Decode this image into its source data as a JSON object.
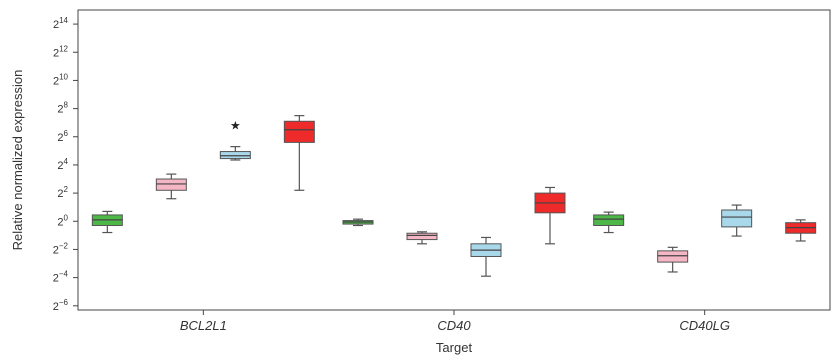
{
  "chart_data": {
    "type": "boxplot",
    "title": "",
    "xlabel": "Target",
    "ylabel": "Relative normalized expression",
    "y_scale": "log2",
    "ylim_exponent": [
      -6.3,
      15
    ],
    "y_ticks": [
      {
        "base": "2",
        "exp": "14"
      },
      {
        "base": "2",
        "exp": "12"
      },
      {
        "base": "2",
        "exp": "10"
      },
      {
        "base": "2",
        "exp": "8"
      },
      {
        "base": "2",
        "exp": "6"
      },
      {
        "base": "2",
        "exp": "4"
      },
      {
        "base": "2",
        "exp": "2"
      },
      {
        "base": "2",
        "exp": "0"
      },
      {
        "base": "2",
        "exp": "−2"
      },
      {
        "base": "2",
        "exp": "−4"
      },
      {
        "base": "2",
        "exp": "−6"
      }
    ],
    "categories": [
      "BCL2L1",
      "CD40",
      "CD40LG"
    ],
    "grid": false,
    "legend": "none",
    "groups": [
      {
        "category": "BCL2L1",
        "boxes": [
          {
            "color": "#4db848",
            "min": -0.8,
            "q1": -0.3,
            "median": 0.1,
            "q3": 0.45,
            "max": 0.7
          },
          {
            "color": "#f4b6c4",
            "min": 1.6,
            "q1": 2.2,
            "median": 2.65,
            "q3": 3.0,
            "max": 3.35
          },
          {
            "color": "#a8d8ea",
            "min": 4.35,
            "q1": 4.45,
            "median": 4.65,
            "q3": 4.95,
            "max": 5.3
          },
          {
            "color": "#ee2a2a",
            "min": 2.2,
            "q1": 5.6,
            "median": 6.5,
            "q3": 7.1,
            "max": 7.5
          }
        ],
        "outliers": [
          {
            "box": 2,
            "value": 6.8
          }
        ]
      },
      {
        "category": "CD40",
        "boxes": [
          {
            "color": "#4db848",
            "min": -0.3,
            "q1": -0.2,
            "median": -0.05,
            "q3": 0.05,
            "max": 0.15
          },
          {
            "color": "#f4b6c4",
            "min": -1.6,
            "q1": -1.3,
            "median": -1.0,
            "q3": -0.85,
            "max": -0.75
          },
          {
            "color": "#a8d8ea",
            "min": -3.9,
            "q1": -2.5,
            "median": -2.05,
            "q3": -1.6,
            "max": -1.15
          },
          {
            "color": "#ee2a2a",
            "min": -1.6,
            "q1": 0.6,
            "median": 1.3,
            "q3": 2.0,
            "max": 2.4
          }
        ],
        "outliers": []
      },
      {
        "category": "CD40LG",
        "boxes": [
          {
            "color": "#4db848",
            "min": -0.8,
            "q1": -0.3,
            "median": 0.15,
            "q3": 0.45,
            "max": 0.65
          },
          {
            "color": "#f4b6c4",
            "min": -3.6,
            "q1": -2.9,
            "median": -2.45,
            "q3": -2.1,
            "max": -1.85
          },
          {
            "color": "#a8d8ea",
            "min": -1.05,
            "q1": -0.4,
            "median": 0.3,
            "q3": 0.8,
            "max": 1.15
          },
          {
            "color": "#ee2a2a",
            "min": -1.4,
            "q1": -0.85,
            "median": -0.45,
            "q3": -0.1,
            "max": 0.1
          }
        ],
        "outliers": []
      }
    ]
  }
}
